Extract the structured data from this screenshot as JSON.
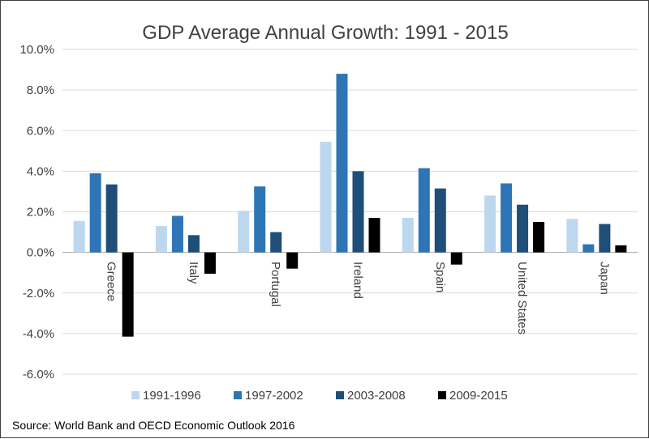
{
  "chart_data": {
    "type": "bar",
    "title": "GDP Average Annual Growth: 1991 - 2015",
    "xlabel": "",
    "ylabel": "",
    "ylim": [
      -6,
      10
    ],
    "yticks": [
      "10.0%",
      "8.0%",
      "6.0%",
      "4.0%",
      "2.0%",
      "0.0%",
      "-2.0%",
      "-4.0%",
      "-6.0%"
    ],
    "ytick_values": [
      10,
      8,
      6,
      4,
      2,
      0,
      -2,
      -4,
      -6
    ],
    "categories": [
      "Greece",
      "Italy",
      "Portugal",
      "Ireland",
      "Spain",
      "United States",
      "Japan"
    ],
    "series": [
      {
        "name": "1991-1996",
        "color": "#bdd7ee",
        "values": [
          1.55,
          1.3,
          2.05,
          5.45,
          1.7,
          2.8,
          1.65
        ]
      },
      {
        "name": "1997-2002",
        "color": "#2e75b6",
        "values": [
          3.9,
          1.8,
          3.25,
          8.8,
          4.15,
          3.4,
          0.4
        ]
      },
      {
        "name": "2003-2008",
        "color": "#1f4e79",
        "values": [
          3.35,
          0.85,
          1.0,
          4.0,
          3.15,
          2.35,
          1.4
        ]
      },
      {
        "name": "2009-2015",
        "color": "#000000",
        "values": [
          -4.15,
          -1.05,
          -0.8,
          1.7,
          -0.6,
          1.5,
          0.35
        ]
      }
    ],
    "grid": true,
    "legend": "bottom"
  },
  "source": "Source: World Bank and OECD Economic Outlook 2016"
}
